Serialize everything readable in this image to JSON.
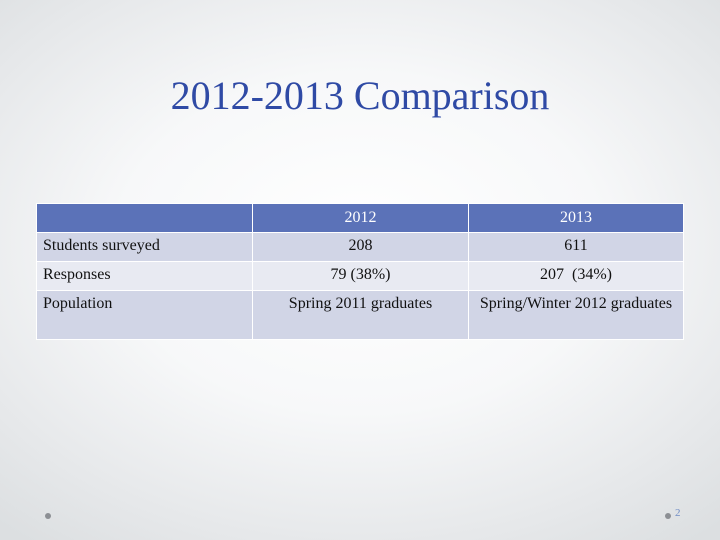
{
  "slide": {
    "title": "2012-2013 Comparison",
    "page_number": "2"
  },
  "table": {
    "headers": [
      "",
      "2012",
      "2013"
    ],
    "rows": [
      [
        "Students surveyed",
        "208",
        "611"
      ],
      [
        "Responses",
        "79 (38%)",
        "207  (34%)"
      ],
      [
        "Population",
        "Spring 2011 graduates",
        "Spring/Winter 2012 graduates"
      ]
    ]
  },
  "colors": {
    "title": "#2f4aa5",
    "header_fill": "#5b72b8",
    "row_fill_dark": "#d1d5e6",
    "row_fill_light": "#e8eaf2"
  }
}
